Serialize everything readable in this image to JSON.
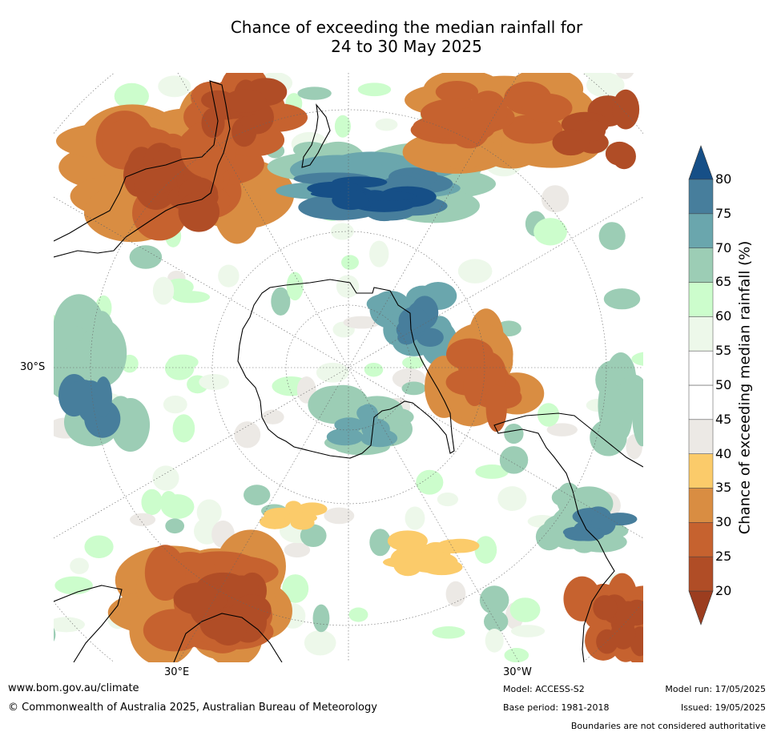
{
  "title": {
    "line1": "Chance of exceeding the median rainfall for",
    "line2": "24 to 30 May 2025"
  },
  "map": {
    "projection": "south-polar",
    "lat_label_left": "30°S",
    "lon_label_left": "30°E",
    "lon_label_right": "30°W"
  },
  "colorbar": {
    "title": "Chance of exceeding median rainfall (%)",
    "ticks": [
      "20",
      "25",
      "30",
      "35",
      "40",
      "45",
      "50",
      "55",
      "60",
      "65",
      "70",
      "75",
      "80"
    ],
    "colors": [
      "#9c3d1f",
      "#b04d26",
      "#c6622f",
      "#d98d42",
      "#fbcb6a",
      "#ece9e5",
      "#ffffff",
      "#ffffff",
      "#edf8ea",
      "#ccfdcc",
      "#9ccdb5",
      "#6aa6ad",
      "#477e9c",
      "#164f87"
    ]
  },
  "footer": {
    "website": "www.bom.gov.au/climate",
    "copyright": "© Commonwealth of Australia 2025, Australian Bureau of Meteorology",
    "model": "Model: ACCESS-S2",
    "base_period": "Base period: 1981-2018",
    "model_run": "Model run: 17/05/2025",
    "issued": "Issued: 19/05/2025",
    "disclaimer": "Boundaries are not considered authoritative"
  }
}
